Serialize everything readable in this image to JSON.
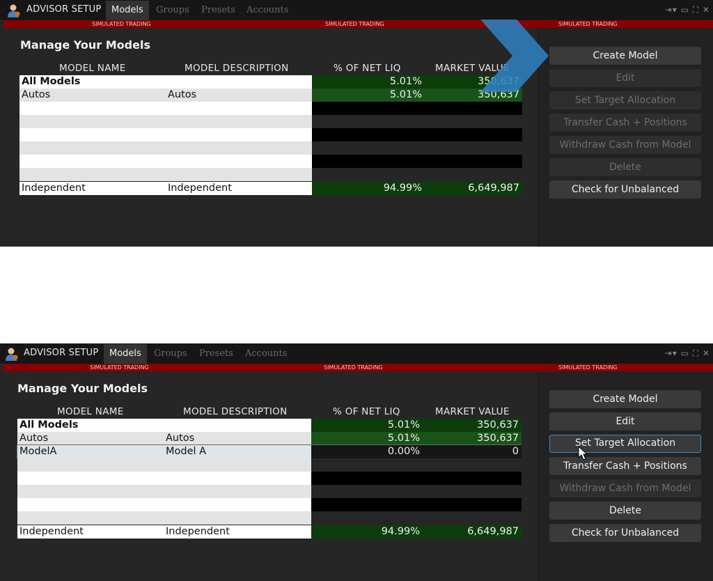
{
  "window": {
    "title": "ADVISOR SETUP",
    "tabs": [
      "Models",
      "Groups",
      "Presets",
      "Accounts"
    ],
    "active_tab": "Models",
    "controls": "⇥▾ ▭ ⛶ ✕"
  },
  "banner": {
    "text": "SIMULATED TRADING"
  },
  "page": {
    "heading": "Manage Your Models",
    "columns": {
      "name": "MODEL NAME",
      "description": "MODEL DESCRIPTION",
      "pct": "% OF NET LIQ",
      "market_value": "MARKET VALUE"
    }
  },
  "state1": {
    "rows": [
      {
        "name": "All Models",
        "description": "",
        "pct": "5.01%",
        "mv": "350,637"
      },
      {
        "name": "Autos",
        "description": "Autos",
        "pct": "5.01%",
        "mv": "350,637"
      },
      {
        "name": "Independent",
        "description": "Independent",
        "pct": "94.99%",
        "mv": "6,649,987"
      }
    ],
    "buttons": [
      {
        "label": "Create Model",
        "enabled": true
      },
      {
        "label": "Edit",
        "enabled": false
      },
      {
        "label": "Set Target Allocation",
        "enabled": false
      },
      {
        "label": "Transfer Cash + Positions",
        "enabled": false
      },
      {
        "label": "Withdraw Cash from Model",
        "enabled": false
      },
      {
        "label": "Delete",
        "enabled": false
      },
      {
        "label": "Check for Unbalanced",
        "enabled": true
      }
    ]
  },
  "state2": {
    "rows": [
      {
        "name": "All Models",
        "description": "",
        "pct": "5.01%",
        "mv": "350,637"
      },
      {
        "name": "Autos",
        "description": "Autos",
        "pct": "5.01%",
        "mv": "350,637"
      },
      {
        "name": "ModelA",
        "description": "Model A",
        "pct": "0.00%",
        "mv": "0"
      },
      {
        "name": "Independent",
        "description": "Independent",
        "pct": "94.99%",
        "mv": "6,649,987"
      }
    ],
    "buttons": [
      {
        "label": "Create Model",
        "enabled": true
      },
      {
        "label": "Edit",
        "enabled": true
      },
      {
        "label": "Set Target Allocation",
        "enabled": true
      },
      {
        "label": "Transfer Cash + Positions",
        "enabled": true
      },
      {
        "label": "Withdraw Cash from Model",
        "enabled": false
      },
      {
        "label": "Delete",
        "enabled": true
      },
      {
        "label": "Check for Unbalanced",
        "enabled": true
      }
    ]
  },
  "colors": {
    "simulated_banner": "#8a0000",
    "value_green": "#0b3d0b",
    "value_green_sel": "#1a531a",
    "focus_blue": "#3b8ed0",
    "arrow": "#2f80c0"
  }
}
